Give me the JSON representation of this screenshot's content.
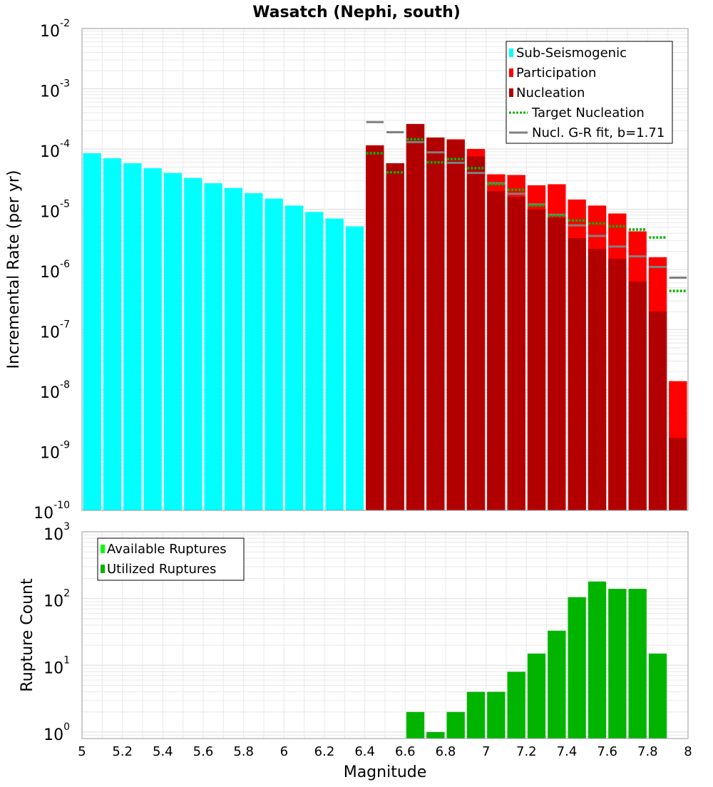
{
  "title": "Wasatch (Nephi, south)",
  "colors": {
    "sub_seismogenic": "#00ffff",
    "participation": "#ff0000",
    "nucleation": "#b20000",
    "target_nucleation": "#00b400",
    "gr_fit": "#808080",
    "mfd_nucleation_marker": "#333333",
    "available_ruptures": "#00ff00",
    "utilized_ruptures": "#00b400",
    "grid": "#e8e8e8"
  },
  "chart_data": [
    {
      "type": "bar",
      "id": "rates",
      "xlabel": "",
      "ylabel": "Incremental Rate (per yr)",
      "xlim": [
        5,
        8
      ],
      "ylim": [
        1e-10,
        0.01
      ],
      "yscale": "log",
      "y_tick_exponents": [
        -2,
        -3,
        -4,
        -5,
        -6,
        -7,
        -8,
        -9,
        -10
      ],
      "bin_width": 0.1,
      "legend": {
        "placement": "top-right",
        "entries": [
          {
            "label": "Sub-Seismogenic",
            "kind": "bar",
            "color_key": "sub_seismogenic"
          },
          {
            "label": "Participation",
            "kind": "bar",
            "color_key": "participation"
          },
          {
            "label": "Nucleation",
            "kind": "bar",
            "color_key": "nucleation"
          },
          {
            "label": "Target Nucleation",
            "kind": "dotted",
            "color_key": "target_nucleation"
          },
          {
            "label": "Nucl. G-R fit, b=1.71",
            "kind": "line",
            "color_key": "gr_fit"
          }
        ]
      },
      "series": [
        {
          "name": "Sub-Seismogenic",
          "x": [
            5.05,
            5.15,
            5.25,
            5.35,
            5.45,
            5.55,
            5.65,
            5.75,
            5.85,
            5.95,
            6.05,
            6.15,
            6.25,
            6.35
          ],
          "values": [
            8.5e-05,
            7e-05,
            5.8e-05,
            4.8e-05,
            4e-05,
            3.3e-05,
            2.7e-05,
            2.25e-05,
            1.85e-05,
            1.5e-05,
            1.15e-05,
            9e-06,
            7e-06,
            5.2e-06
          ]
        },
        {
          "name": "Participation",
          "x": [
            6.45,
            6.55,
            6.65,
            6.75,
            6.85,
            6.95,
            7.05,
            7.15,
            7.25,
            7.35,
            7.45,
            7.55,
            7.65,
            7.75,
            7.85,
            7.95
          ],
          "values": [
            0.000115,
            5.8e-05,
            0.00026,
            0.000155,
            0.000145,
            0.0001,
            3.8e-05,
            3.7e-05,
            2.5e-05,
            2.6e-05,
            1.45e-05,
            1.15e-05,
            8.5e-06,
            4.3e-06,
            1.6e-06,
            1.4e-08
          ]
        },
        {
          "name": "Nucleation",
          "x": [
            6.45,
            6.55,
            6.65,
            6.75,
            6.85,
            6.95,
            7.05,
            7.15,
            7.25,
            7.35,
            7.45,
            7.55,
            7.65,
            7.75,
            7.85,
            7.95
          ],
          "values": [
            0.000115,
            5.8e-05,
            0.00026,
            0.000155,
            0.00014,
            7.5e-05,
            2e-05,
            1.6e-05,
            1e-05,
            7.2e-06,
            3.3e-06,
            2.2e-06,
            1.5e-06,
            6.3e-07,
            2e-07,
            1.6e-09
          ]
        },
        {
          "name": "Target Nucleation",
          "x": [
            6.45,
            6.55,
            6.65,
            6.75,
            6.85,
            6.95,
            7.05,
            7.15,
            7.25,
            7.35,
            7.45,
            7.55,
            7.65,
            7.75,
            7.85,
            7.95
          ],
          "values": [
            8.5e-05,
            4.1e-05,
            0.000145,
            6e-05,
            6.8e-05,
            4.8e-05,
            2.6e-05,
            2.1e-05,
            1.15e-05,
            7.8e-06,
            6.5e-06,
            5.8e-06,
            5.2e-06,
            4.6e-06,
            3.4e-06,
            4.4e-07
          ]
        },
        {
          "name": "Nucl. G-R fit, b=1.71",
          "x": [
            6.45,
            6.55,
            6.65,
            6.75,
            6.85,
            6.95,
            7.05,
            7.15,
            7.25,
            7.35,
            7.45,
            7.55,
            7.65,
            7.75,
            7.85,
            7.95
          ],
          "values": [
            0.00028,
            0.00019,
            0.00013,
            8.8e-05,
            5.9e-05,
            4e-05,
            2.7e-05,
            1.8e-05,
            1.2e-05,
            8.1e-06,
            5.4e-06,
            3.6e-06,
            2.4e-06,
            1.65e-06,
            1.1e-06,
            7.3e-07
          ]
        }
      ]
    },
    {
      "type": "bar",
      "id": "counts",
      "xlabel": "Magnitude",
      "ylabel": "Rupture Count",
      "xlim": [
        5,
        8
      ],
      "ylim": [
        0.8,
        1000
      ],
      "yscale": "log",
      "y_tick_exponents": [
        3,
        2,
        1,
        0
      ],
      "x_ticks": [
        "5",
        "5.2",
        "5.4",
        "5.6",
        "5.8",
        "6",
        "6.2",
        "6.4",
        "6.6",
        "6.8",
        "7",
        "7.2",
        "7.4",
        "7.6",
        "7.8",
        "8"
      ],
      "bin_width": 0.1,
      "legend": {
        "placement": "top-left",
        "entries": [
          {
            "label": "Available Ruptures",
            "kind": "bar",
            "color_key": "available_ruptures"
          },
          {
            "label": "Utilized Ruptures",
            "kind": "bar",
            "color_key": "utilized_ruptures"
          }
        ]
      },
      "series": [
        {
          "name": "Utilized Ruptures",
          "x": [
            6.65,
            6.75,
            6.85,
            6.95,
            7.05,
            7.15,
            7.25,
            7.35,
            7.45,
            7.55,
            7.65,
            7.75,
            7.85
          ],
          "values": [
            2,
            1,
            2,
            4,
            4,
            8,
            15,
            33,
            105,
            180,
            140,
            140,
            15
          ]
        }
      ]
    }
  ]
}
